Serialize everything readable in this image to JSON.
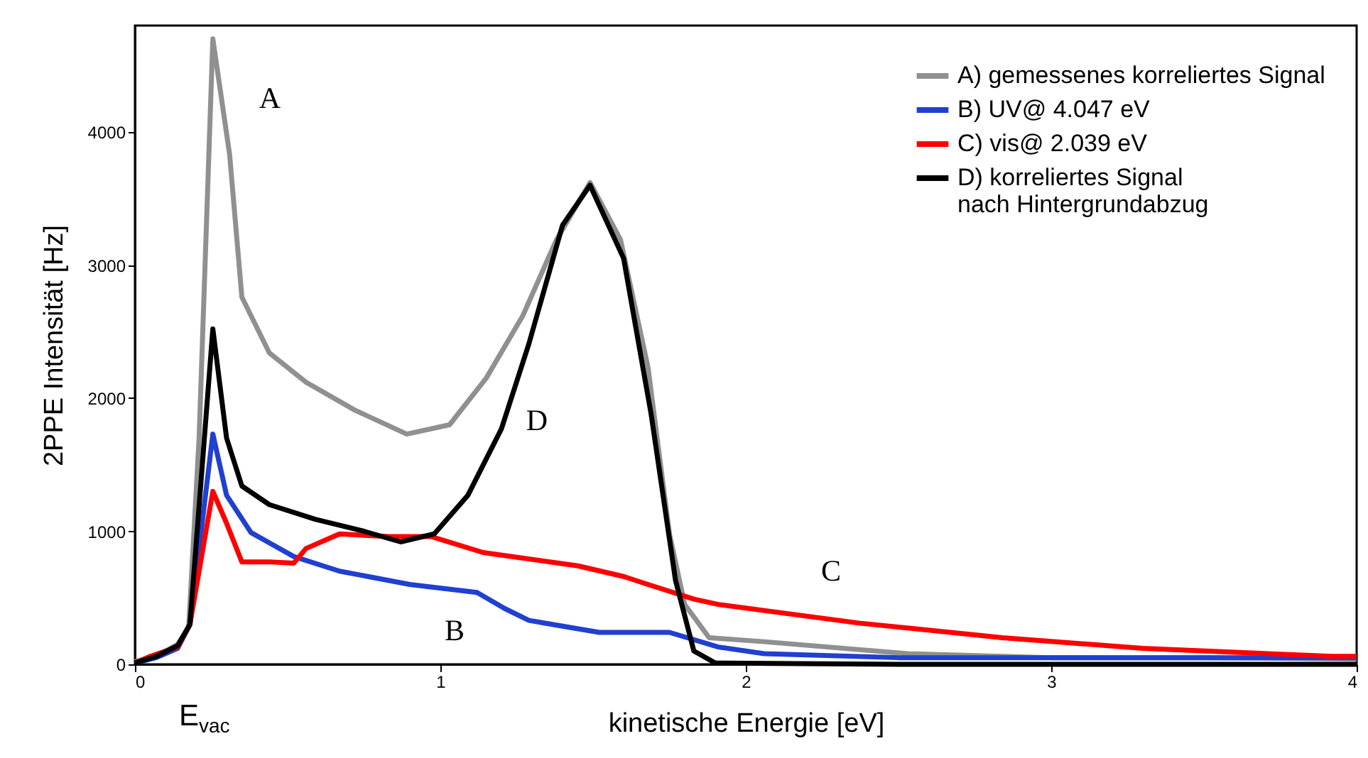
{
  "chart_data": {
    "type": "line",
    "xlabel": "kinetische Energie [eV]",
    "ylabel": "2PPE Intensität [Hz]",
    "xlim": [
      0,
      4
    ],
    "xticks": [
      0,
      1,
      2,
      3,
      4
    ],
    "ylim": [
      0,
      4800
    ],
    "yticks": [
      0,
      1000,
      2000,
      3000,
      4000
    ],
    "grid": false,
    "legend": "top right",
    "marker": "none",
    "line_style": "solid",
    "series": [
      {
        "name": "A) gemessenes korreliertes Signal",
        "color": "#909090",
        "x": [
          0,
          0.07,
          0.14,
          0.176,
          0.21,
          0.255,
          0.31,
          0.35,
          0.44,
          0.56,
          0.72,
          0.89,
          1.03,
          1.15,
          1.27,
          1.38,
          1.49,
          1.59,
          1.68,
          1.75,
          1.8,
          1.88,
          2.06,
          2.53,
          3.0,
          3.5,
          4.0
        ],
        "values": [
          20,
          60,
          150,
          280,
          1700,
          4700,
          3830,
          2760,
          2340,
          2120,
          1910,
          1730,
          1800,
          2150,
          2620,
          3190,
          3620,
          3190,
          2230,
          980,
          450,
          200,
          170,
          80,
          50,
          50,
          40
        ]
      },
      {
        "name": "B) UV@ 4.047 eV",
        "color": "#2040d0",
        "x": [
          0,
          0.07,
          0.14,
          0.18,
          0.255,
          0.3,
          0.38,
          0.52,
          0.67,
          0.9,
          1.12,
          1.21,
          1.29,
          1.52,
          1.75,
          1.91,
          2.06,
          2.5,
          3.0,
          3.5,
          4.0
        ],
        "values": [
          10,
          50,
          120,
          300,
          1730,
          1270,
          990,
          810,
          700,
          600,
          540,
          420,
          330,
          240,
          240,
          130,
          80,
          50,
          50,
          50,
          50
        ]
      },
      {
        "name": "C) vis@ 2.039 eV",
        "color": "#ff0000",
        "x": [
          0,
          0.05,
          0.14,
          0.18,
          0.255,
          0.3,
          0.35,
          0.44,
          0.52,
          0.56,
          0.67,
          0.83,
          0.97,
          1.14,
          1.45,
          1.6,
          1.68,
          1.83,
          1.91,
          2.37,
          2.84,
          3.3,
          3.92,
          4.0
        ],
        "values": [
          10,
          60,
          130,
          300,
          1300,
          1060,
          770,
          770,
          760,
          870,
          980,
          960,
          960,
          840,
          740,
          660,
          600,
          490,
          450,
          310,
          200,
          120,
          60,
          60
        ]
      },
      {
        "name": "D) korreliertes Signal\nnach Hintergrundabzug",
        "color": "#000000",
        "x": [
          0,
          0.07,
          0.14,
          0.18,
          0.255,
          0.3,
          0.35,
          0.44,
          0.59,
          0.75,
          0.87,
          0.98,
          1.09,
          1.2,
          1.29,
          1.4,
          1.49,
          1.6,
          1.69,
          1.77,
          1.83,
          1.9,
          2.5,
          3.0,
          4.0
        ],
        "values": [
          10,
          60,
          140,
          300,
          2520,
          1700,
          1340,
          1200,
          1090,
          1000,
          920,
          980,
          1270,
          1770,
          2410,
          3300,
          3600,
          3050,
          1880,
          630,
          100,
          10,
          0,
          0,
          0
        ]
      }
    ],
    "annotations": [
      "A",
      "B",
      "C",
      "D",
      "E$_{vac}$"
    ]
  }
}
